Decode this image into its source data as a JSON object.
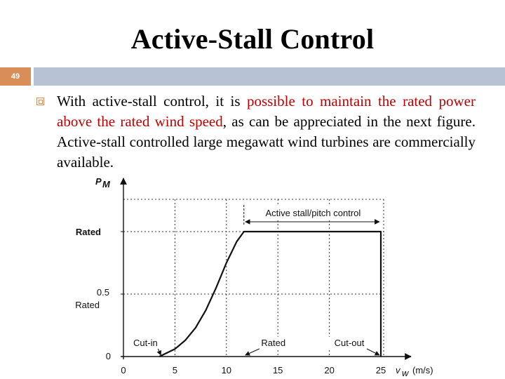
{
  "slide": {
    "title": "Active-Stall Control",
    "number": "49"
  },
  "bullet": {
    "part1": "With active-stall control, it is ",
    "highlight": "possible to maintain the rated power above the rated wind speed",
    "part2": ", as can be appreciated in the next figure. Active-stall controlled large megawatt wind turbines are commercially available."
  },
  "colors": {
    "accent_orange": "#d98e58",
    "bar_blue_gray": "#b7c3d4",
    "highlight_red": "#c00000"
  },
  "chart_data": {
    "type": "line",
    "xlabel": "(m/s)",
    "xlabel_symbol": "v",
    "xlabel_subscript": "w",
    "ylabel_symbol": "P",
    "ylabel_subscript": "M",
    "xlim": [
      0,
      25
    ],
    "x_ticks": [
      "0",
      "5",
      "10",
      "15",
      "20",
      "25"
    ],
    "y_ticks": [
      {
        "label": "0",
        "value": 0
      },
      {
        "label": "0.5",
        "sublabel": "Rated",
        "value": 0.5
      },
      {
        "label": "Rated",
        "value": 1.0
      }
    ],
    "grid": true,
    "curve": [
      [
        3.5,
        0
      ],
      [
        4,
        0.02
      ],
      [
        5,
        0.06
      ],
      [
        6,
        0.13
      ],
      [
        7,
        0.23
      ],
      [
        8,
        0.37
      ],
      [
        9,
        0.55
      ],
      [
        10,
        0.75
      ],
      [
        11,
        0.92
      ],
      [
        11.7,
        1.0
      ],
      [
        25,
        1.0
      ],
      [
        25,
        0
      ]
    ],
    "annotations": {
      "cut_in": {
        "text": "Cut-in",
        "x": 3.5
      },
      "rated": {
        "text": "Rated",
        "x": 11.7
      },
      "cut_out": {
        "text": "Cut-out",
        "x": 25
      },
      "region": {
        "text": "Active stall/pitch control",
        "from": 11.7,
        "to": 25
      }
    }
  }
}
